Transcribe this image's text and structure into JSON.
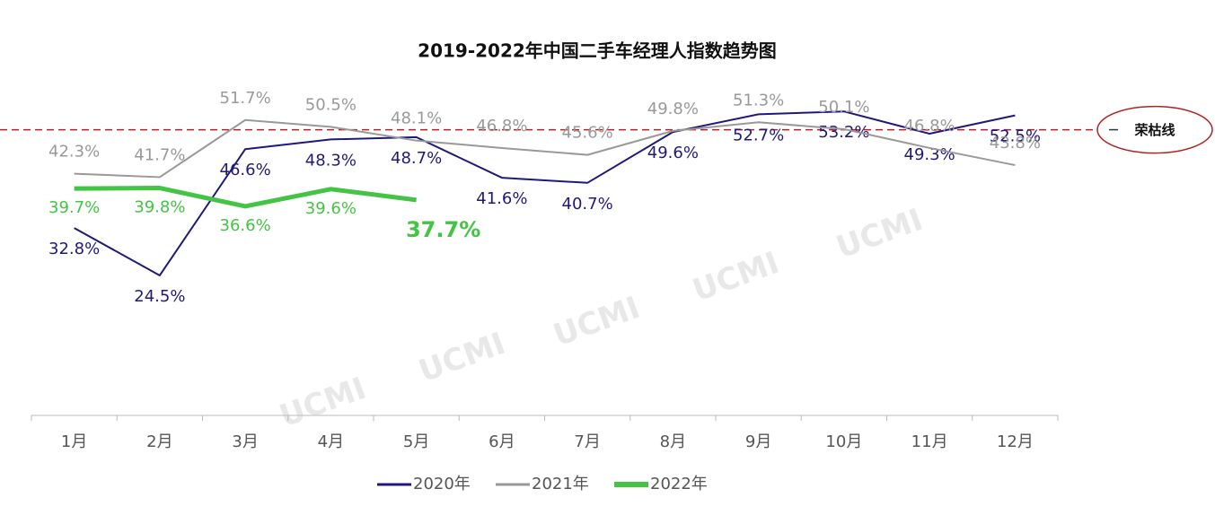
{
  "chart_data": {
    "type": "line",
    "title": "2019-2022年中国二手车经理人指数趋势图",
    "categories": [
      "1月",
      "2月",
      "3月",
      "4月",
      "5月",
      "6月",
      "7月",
      "8月",
      "9月",
      "10月",
      "11月",
      "12月"
    ],
    "series": [
      {
        "name": "2020年",
        "color": "#1f1a7a",
        "values": [
          32.8,
          24.5,
          46.6,
          48.3,
          48.7,
          41.6,
          40.7,
          49.6,
          52.7,
          53.2,
          49.3,
          52.5
        ],
        "value_labels": [
          "32.8%",
          "24.5%",
          "46.6%",
          "48.3%",
          "48.7%",
          "41.6%",
          "40.7%",
          "49.6%",
          "52.7%",
          "53.2%",
          "49.3%",
          "52.5%"
        ]
      },
      {
        "name": "2021年",
        "color": "#999999",
        "values": [
          42.3,
          41.7,
          51.7,
          50.5,
          48.1,
          46.8,
          45.6,
          49.8,
          51.3,
          50.1,
          46.8,
          43.8
        ],
        "value_labels": [
          "42.3%",
          "41.7%",
          "51.7%",
          "50.5%",
          "48.1%",
          "46.8%",
          "45.6%",
          "49.8%",
          "51.3%",
          "50.1%",
          "46.8%",
          "43.8%"
        ]
      },
      {
        "name": "2022年",
        "color": "#44c444",
        "values": [
          39.7,
          39.8,
          36.6,
          39.6,
          37.7,
          null,
          null,
          null,
          null,
          null,
          null,
          null
        ],
        "value_labels": [
          "39.7%",
          "39.8%",
          "36.6%",
          "39.6%",
          "37.7%",
          null,
          null,
          null,
          null,
          null,
          null,
          null
        ]
      }
    ],
    "reference_line": {
      "value": 50,
      "label": "荣枯线",
      "color": "#b22222"
    },
    "watermark": "UCMI",
    "ylim": [
      0,
      57
    ]
  }
}
